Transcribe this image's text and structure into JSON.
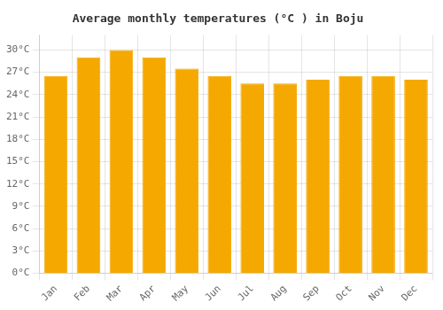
{
  "chart_data": {
    "type": "bar",
    "title": "Average monthly temperatures (°C ) in Boju",
    "categories": [
      "Jan",
      "Feb",
      "Mar",
      "Apr",
      "May",
      "Jun",
      "Jul",
      "Aug",
      "Sep",
      "Oct",
      "Nov",
      "Dec"
    ],
    "values": [
      26.5,
      29.0,
      30.0,
      29.0,
      27.5,
      26.5,
      25.5,
      25.5,
      26.0,
      26.5,
      26.5,
      26.0
    ],
    "color": "#F5A800",
    "ylim": [
      0,
      32
    ],
    "yticks": [
      {
        "value": 0,
        "label": "0°C"
      },
      {
        "value": 3,
        "label": "3°C"
      },
      {
        "value": 6,
        "label": "6°C"
      },
      {
        "value": 9,
        "label": "9°C"
      },
      {
        "value": 12,
        "label": "12°C"
      },
      {
        "value": 15,
        "label": "15°C"
      },
      {
        "value": 18,
        "label": "18°C"
      },
      {
        "value": 21,
        "label": "21°C"
      },
      {
        "value": 24,
        "label": "24°C"
      },
      {
        "value": 27,
        "label": "27°C"
      },
      {
        "value": 30,
        "label": "30°C"
      }
    ],
    "grid": true
  }
}
